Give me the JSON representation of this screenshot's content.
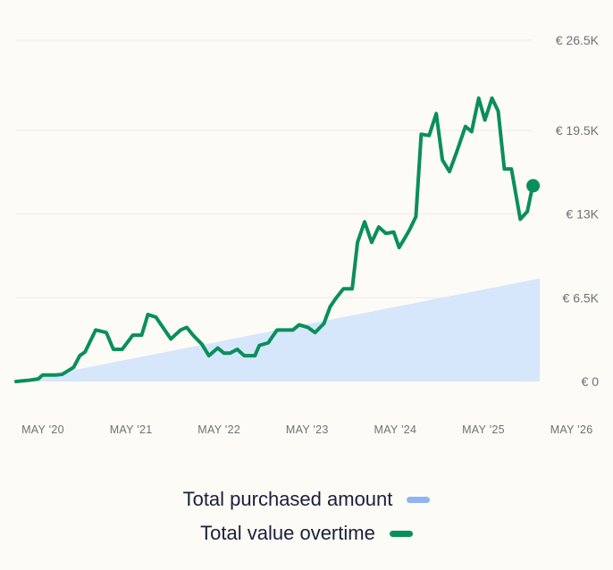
{
  "chart_data": {
    "type": "area",
    "y_ticks": [
      "€ 26.5K",
      "€ 19.5K",
      "€ 13K",
      "€ 6.5K",
      "€ 0"
    ],
    "y_tick_values": [
      26500,
      19500,
      13000,
      6500,
      0
    ],
    "x_ticks": [
      "MAY '20",
      "MAY '21",
      "MAY '22",
      "MAY '23",
      "MAY '24",
      "MAY '25",
      "MAY '26"
    ],
    "x_tick_values": [
      2020.375,
      2021.375,
      2022.375,
      2023.375,
      2024.375,
      2025.375,
      2026.375
    ],
    "xlim": [
      2020.0,
      2026.375
    ],
    "ylim": [
      0,
      26500
    ],
    "grid": true,
    "legend_position": "bottom-center",
    "series": [
      {
        "name": "Total purchased amount",
        "type": "area",
        "color": "#D6E6FB",
        "legend_color": "#8FB3F5",
        "points": [
          [
            2020.0,
            0
          ],
          [
            2025.92,
            8000
          ]
        ]
      },
      {
        "name": "Total value overtime",
        "type": "line",
        "color": "#0A8F5A",
        "end_marker": true,
        "points": [
          [
            2020.0,
            0
          ],
          [
            2020.15,
            100
          ],
          [
            2020.25,
            200
          ],
          [
            2020.3,
            500
          ],
          [
            2020.45,
            500
          ],
          [
            2020.52,
            550
          ],
          [
            2020.58,
            800
          ],
          [
            2020.65,
            1100
          ],
          [
            2020.72,
            2000
          ],
          [
            2020.78,
            2300
          ],
          [
            2020.9,
            4000
          ],
          [
            2021.02,
            3800
          ],
          [
            2021.1,
            2500
          ],
          [
            2021.2,
            2500
          ],
          [
            2021.32,
            3600
          ],
          [
            2021.42,
            3600
          ],
          [
            2021.49,
            5200
          ],
          [
            2021.58,
            5000
          ],
          [
            2021.65,
            4300
          ],
          [
            2021.75,
            3300
          ],
          [
            2021.86,
            4000
          ],
          [
            2021.93,
            4200
          ],
          [
            2022.0,
            3600
          ],
          [
            2022.1,
            2900
          ],
          [
            2022.18,
            2000
          ],
          [
            2022.28,
            2600
          ],
          [
            2022.35,
            2200
          ],
          [
            2022.42,
            2200
          ],
          [
            2022.5,
            2500
          ],
          [
            2022.58,
            2000
          ],
          [
            2022.7,
            2000
          ],
          [
            2022.75,
            2800
          ],
          [
            2022.85,
            3000
          ],
          [
            2022.95,
            4000
          ],
          [
            2023.05,
            4000
          ],
          [
            2023.13,
            4000
          ],
          [
            2023.2,
            4400
          ],
          [
            2023.3,
            4200
          ],
          [
            2023.38,
            3800
          ],
          [
            2023.48,
            4500
          ],
          [
            2023.55,
            5800
          ],
          [
            2023.62,
            6500
          ],
          [
            2023.7,
            7200
          ],
          [
            2023.8,
            7200
          ],
          [
            2023.86,
            10800
          ],
          [
            2023.94,
            12400
          ],
          [
            2024.02,
            10800
          ],
          [
            2024.1,
            12000
          ],
          [
            2024.18,
            11500
          ],
          [
            2024.27,
            11600
          ],
          [
            2024.33,
            10400
          ],
          [
            2024.4,
            11200
          ],
          [
            2024.45,
            11800
          ],
          [
            2024.52,
            12800
          ],
          [
            2024.58,
            19200
          ],
          [
            2024.67,
            19100
          ],
          [
            2024.75,
            20800
          ],
          [
            2024.82,
            17200
          ],
          [
            2024.9,
            16300
          ],
          [
            2024.98,
            17800
          ],
          [
            2025.08,
            19800
          ],
          [
            2025.15,
            19400
          ],
          [
            2025.23,
            22000
          ],
          [
            2025.3,
            20300
          ],
          [
            2025.38,
            22000
          ],
          [
            2025.45,
            21000
          ],
          [
            2025.52,
            16500
          ],
          [
            2025.6,
            16500
          ],
          [
            2025.7,
            12600
          ],
          [
            2025.78,
            13200
          ],
          [
            2025.84,
            15200
          ]
        ]
      }
    ]
  },
  "legend": {
    "items": [
      {
        "label": "Total purchased amount",
        "color": "#8FB3F5"
      },
      {
        "label": "Total value overtime",
        "color": "#0A8F5A"
      }
    ]
  }
}
